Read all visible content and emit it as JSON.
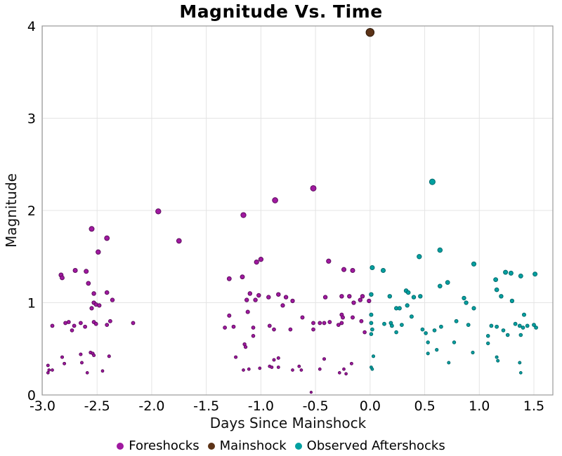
{
  "title": "Magnitude Vs. Time",
  "chart_data": {
    "type": "scatter",
    "title": "Magnitude Vs. Time",
    "xlabel": "Days Since Mainshock",
    "ylabel": "Magnitude",
    "xlim": [
      -3.0,
      1.67
    ],
    "ylim": [
      0,
      4
    ],
    "grid": true,
    "legend_position": "bottom-center",
    "size_encoding": "marker size grows with magnitude",
    "x_ticks": [
      -3.0,
      -2.5,
      -2.0,
      -1.5,
      -1.0,
      -0.5,
      0.0,
      0.5,
      1.0,
      1.5
    ],
    "x_tick_labels": [
      "-3.0",
      "-2.5",
      "-2.0",
      "-1.5",
      "-1.0",
      "-0.5",
      "0.0",
      "0.5",
      "1.0",
      "1.5"
    ],
    "y_ticks": [
      0,
      1,
      2,
      3,
      4
    ],
    "y_tick_labels": [
      "0",
      "1",
      "2",
      "3",
      "4"
    ],
    "series": [
      {
        "name": "Foreshocks",
        "color": "#A019A0",
        "edge_color": "#5E0C5E",
        "points": [
          [
            -1.94,
            1.99
          ],
          [
            -2.55,
            1.8
          ],
          [
            -2.41,
            1.7
          ],
          [
            -2.49,
            1.55
          ],
          [
            -1.75,
            1.67
          ],
          [
            -2.83,
            1.3
          ],
          [
            -2.82,
            1.27
          ],
          [
            -2.7,
            1.35
          ],
          [
            -2.6,
            1.34
          ],
          [
            -2.58,
            1.21
          ],
          [
            -2.53,
            1.1
          ],
          [
            -2.41,
            1.11
          ],
          [
            -2.36,
            1.03
          ],
          [
            -2.53,
            1.0
          ],
          [
            -2.51,
            0.98
          ],
          [
            -2.55,
            0.94
          ],
          [
            -2.48,
            0.97
          ],
          [
            -2.91,
            0.75
          ],
          [
            -2.79,
            0.78
          ],
          [
            -2.76,
            0.79
          ],
          [
            -2.73,
            0.7
          ],
          [
            -2.71,
            0.75
          ],
          [
            -2.65,
            0.78
          ],
          [
            -2.61,
            0.74
          ],
          [
            -2.53,
            0.79
          ],
          [
            -2.51,
            0.77
          ],
          [
            -2.41,
            0.76
          ],
          [
            -2.38,
            0.8
          ],
          [
            -2.17,
            0.78
          ],
          [
            -2.82,
            0.41
          ],
          [
            -2.8,
            0.34
          ],
          [
            -2.65,
            0.44
          ],
          [
            -2.64,
            0.35
          ],
          [
            -2.56,
            0.46
          ],
          [
            -2.54,
            0.45
          ],
          [
            -2.53,
            0.43
          ],
          [
            -2.39,
            0.42
          ],
          [
            -2.95,
            0.32
          ],
          [
            -2.94,
            0.27
          ],
          [
            -2.91,
            0.27
          ],
          [
            -2.95,
            0.24
          ],
          [
            -2.59,
            0.24
          ],
          [
            -2.45,
            0.26
          ],
          [
            -0.52,
            2.24
          ],
          [
            -0.87,
            2.11
          ],
          [
            -1.16,
            1.95
          ],
          [
            -1.04,
            1.44
          ],
          [
            -1.0,
            1.47
          ],
          [
            -0.38,
            1.45
          ],
          [
            -0.24,
            1.36
          ],
          [
            -0.16,
            1.35
          ],
          [
            -1.29,
            1.26
          ],
          [
            -1.17,
            1.28
          ],
          [
            -1.1,
            1.1
          ],
          [
            -1.13,
            1.03
          ],
          [
            -1.05,
            1.03
          ],
          [
            -1.02,
            1.08
          ],
          [
            -0.93,
            1.06
          ],
          [
            -0.84,
            1.09
          ],
          [
            -0.77,
            1.06
          ],
          [
            -0.71,
            1.02
          ],
          [
            -0.8,
            0.97
          ],
          [
            -1.12,
            0.9
          ],
          [
            -1.29,
            0.86
          ],
          [
            -1.33,
            0.73
          ],
          [
            -1.25,
            0.74
          ],
          [
            -1.07,
            0.73
          ],
          [
            -1.07,
            0.64
          ],
          [
            -0.92,
            0.75
          ],
          [
            -0.88,
            0.71
          ],
          [
            -0.73,
            0.71
          ],
          [
            -0.62,
            0.84
          ],
          [
            -0.52,
            0.78
          ],
          [
            -0.52,
            0.71
          ],
          [
            -0.46,
            0.78
          ],
          [
            -0.42,
            0.78
          ],
          [
            -0.37,
            0.79
          ],
          [
            -0.29,
            0.76
          ],
          [
            -0.26,
            0.78
          ],
          [
            -0.26,
            0.87
          ],
          [
            -0.25,
            0.84
          ],
          [
            -0.16,
            0.84
          ],
          [
            -0.08,
            0.8
          ],
          [
            -0.05,
            0.68
          ],
          [
            -0.41,
            1.06
          ],
          [
            -0.26,
            1.07
          ],
          [
            -0.19,
            1.07
          ],
          [
            -0.15,
            1.0
          ],
          [
            -0.07,
            1.07
          ],
          [
            -0.09,
            1.03
          ],
          [
            -0.01,
            1.02
          ],
          [
            -1.15,
            0.55
          ],
          [
            -1.14,
            0.52
          ],
          [
            -1.23,
            0.41
          ],
          [
            -1.16,
            0.27
          ],
          [
            -1.11,
            0.28
          ],
          [
            -1.01,
            0.29
          ],
          [
            -0.92,
            0.31
          ],
          [
            -0.9,
            0.3
          ],
          [
            -0.88,
            0.38
          ],
          [
            -0.84,
            0.4
          ],
          [
            -0.84,
            0.3
          ],
          [
            -0.71,
            0.27
          ],
          [
            -0.65,
            0.31
          ],
          [
            -0.63,
            0.27
          ],
          [
            -0.46,
            0.28
          ],
          [
            -0.42,
            0.39
          ],
          [
            -0.28,
            0.24
          ],
          [
            -0.24,
            0.28
          ],
          [
            -0.22,
            0.23
          ],
          [
            -0.17,
            0.34
          ],
          [
            -0.54,
            0.03
          ]
        ]
      },
      {
        "name": "Mainshock",
        "color": "#5C3317",
        "edge_color": "#2F1A0A",
        "points": [
          [
            0.0,
            3.93
          ]
        ]
      },
      {
        "name": "Observed Aftershocks",
        "color": "#00A0A0",
        "edge_color": "#026A6D",
        "points": [
          [
            0.57,
            2.31
          ],
          [
            0.64,
            1.57
          ],
          [
            0.45,
            1.5
          ],
          [
            0.12,
            1.35
          ],
          [
            0.02,
            1.38
          ],
          [
            0.95,
            1.42
          ],
          [
            1.24,
            1.33
          ],
          [
            1.29,
            1.32
          ],
          [
            1.38,
            1.29
          ],
          [
            1.15,
            1.25
          ],
          [
            1.51,
            1.31
          ],
          [
            0.64,
            1.18
          ],
          [
            0.71,
            1.22
          ],
          [
            0.01,
            1.09
          ],
          [
            0.33,
            1.13
          ],
          [
            0.35,
            1.11
          ],
          [
            0.18,
            1.07
          ],
          [
            0.4,
            1.06
          ],
          [
            0.46,
            1.07
          ],
          [
            1.16,
            1.14
          ],
          [
            1.2,
            1.07
          ],
          [
            0.86,
            1.05
          ],
          [
            0.88,
            1.0
          ],
          [
            1.3,
            1.02
          ],
          [
            0.24,
            0.94
          ],
          [
            0.27,
            0.94
          ],
          [
            0.34,
            0.97
          ],
          [
            0.95,
            0.94
          ],
          [
            0.01,
            0.87
          ],
          [
            0.38,
            0.85
          ],
          [
            1.41,
            0.87
          ],
          [
            0.13,
            0.77
          ],
          [
            0.19,
            0.78
          ],
          [
            0.2,
            0.75
          ],
          [
            0.29,
            0.76
          ],
          [
            0.01,
            0.78
          ],
          [
            0.02,
            0.71
          ],
          [
            0.01,
            0.66
          ],
          [
            0.24,
            0.68
          ],
          [
            0.48,
            0.71
          ],
          [
            0.51,
            0.67
          ],
          [
            0.59,
            0.7
          ],
          [
            0.65,
            0.74
          ],
          [
            0.79,
            0.8
          ],
          [
            0.9,
            0.76
          ],
          [
            1.11,
            0.75
          ],
          [
            1.16,
            0.74
          ],
          [
            1.22,
            0.7
          ],
          [
            1.33,
            0.77
          ],
          [
            1.37,
            0.75
          ],
          [
            1.4,
            0.73
          ],
          [
            1.44,
            0.75
          ],
          [
            1.5,
            0.76
          ],
          [
            1.52,
            0.73
          ],
          [
            1.26,
            0.65
          ],
          [
            1.38,
            0.65
          ],
          [
            1.08,
            0.64
          ],
          [
            0.53,
            0.57
          ],
          [
            0.77,
            0.57
          ],
          [
            1.08,
            0.56
          ],
          [
            0.61,
            0.49
          ],
          [
            0.53,
            0.45
          ],
          [
            0.94,
            0.46
          ],
          [
            0.03,
            0.42
          ],
          [
            0.72,
            0.35
          ],
          [
            1.16,
            0.41
          ],
          [
            1.17,
            0.37
          ],
          [
            1.37,
            0.35
          ],
          [
            1.38,
            0.24
          ],
          [
            0.01,
            0.3
          ],
          [
            0.02,
            0.28
          ]
        ]
      }
    ]
  },
  "colors": {
    "background": "#ffffff",
    "grid": "#E4E4E4",
    "plot_border": "#999999",
    "text": "#000000"
  }
}
